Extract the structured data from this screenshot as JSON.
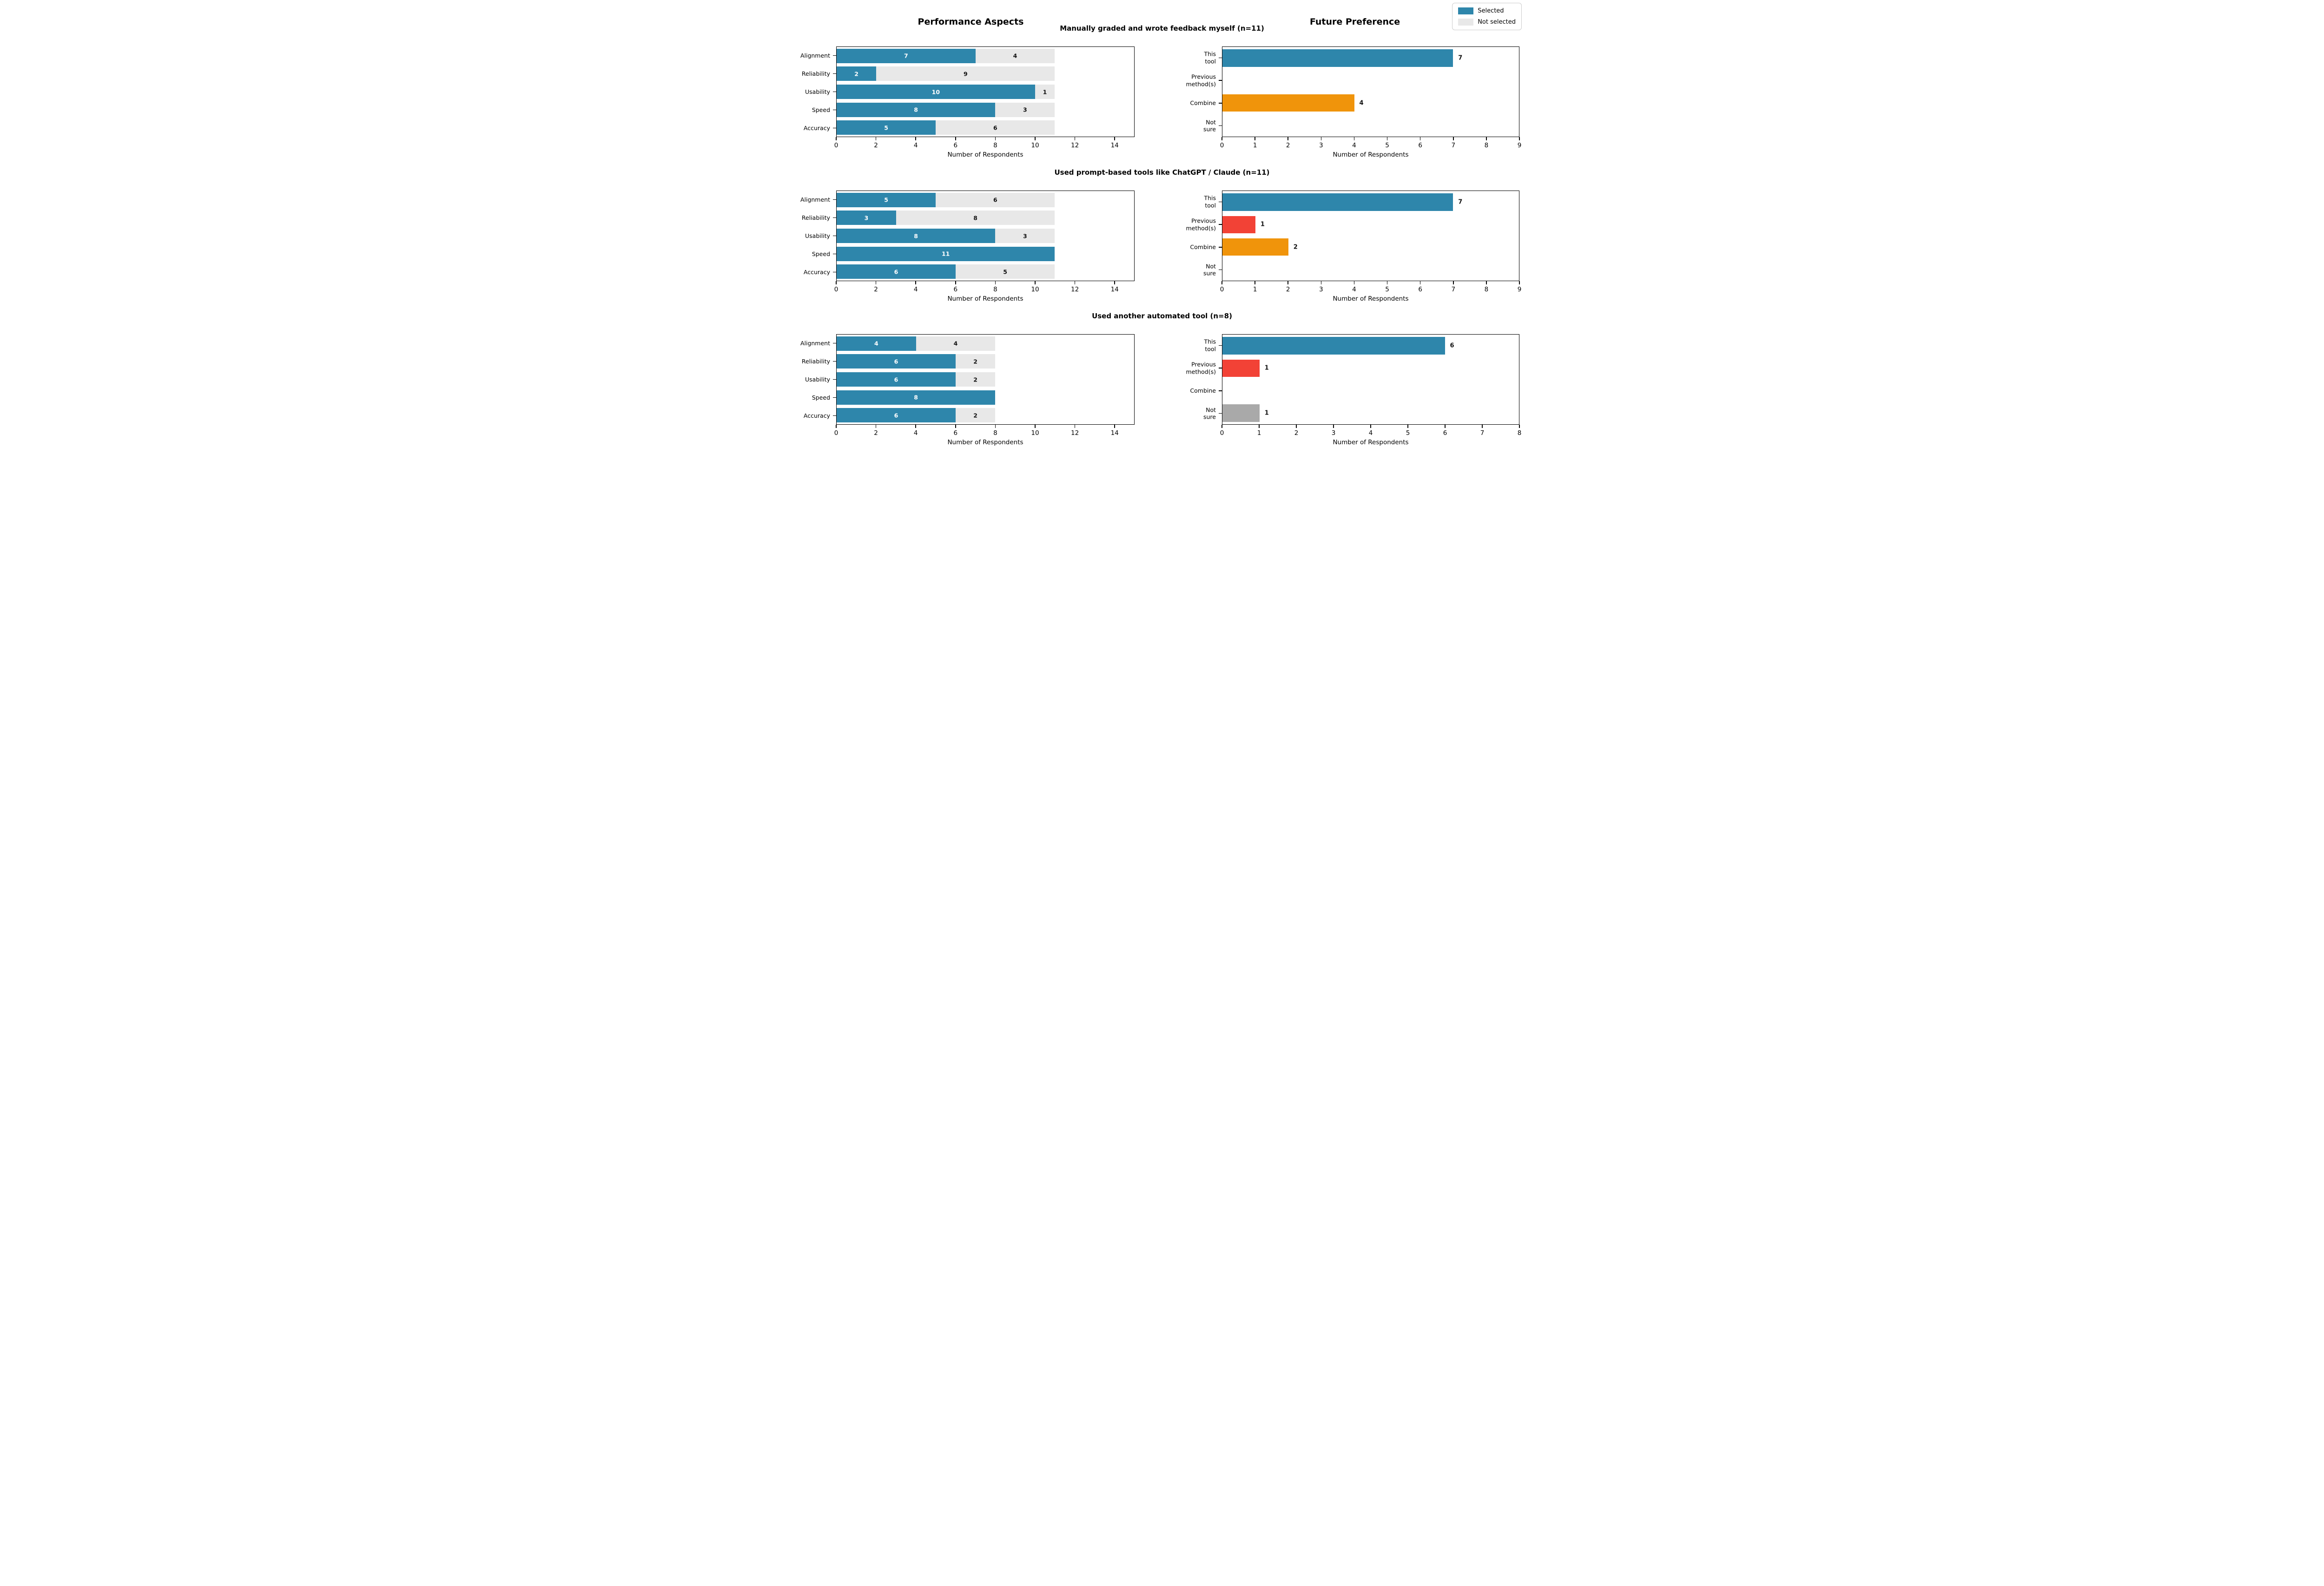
{
  "column_titles": {
    "left": "Performance Aspects",
    "right": "Future Preference"
  },
  "legend": {
    "items": [
      {
        "label": "Selected",
        "color": "#2E86AB"
      },
      {
        "label": "Not selected",
        "color": "#E8E8E8"
      }
    ]
  },
  "colors": {
    "selected": "#2E86AB",
    "not_selected": "#E8E8E8",
    "this_tool": "#2E86AB",
    "previous_methods": "#F24236",
    "combine": "#F0940B",
    "not_sure": "#A9A9A9"
  },
  "chart_data": [
    {
      "id": "row1-performance",
      "type": "bar",
      "orientation": "horizontal",
      "stacked": true,
      "row_title": "Manually graded and wrote feedback myself (n=11)",
      "categories": [
        "Alignment",
        "Reliability",
        "Usability",
        "Speed",
        "Accuracy"
      ],
      "series": [
        {
          "name": "Selected",
          "color": "#2E86AB",
          "values": [
            7,
            2,
            10,
            8,
            5
          ]
        },
        {
          "name": "Not selected",
          "color": "#E8E8E8",
          "values": [
            4,
            9,
            1,
            3,
            6
          ]
        }
      ],
      "xlabel": "Number of Respondents",
      "xlim": [
        0,
        15
      ],
      "xticks": [
        0,
        2,
        4,
        6,
        8,
        10,
        12,
        14
      ],
      "grid": false
    },
    {
      "id": "row1-preference",
      "type": "bar",
      "orientation": "horizontal",
      "stacked": false,
      "row_title": "Manually graded and wrote feedback myself (n=11)",
      "categories": [
        "This tool",
        "Previous\nmethod(s)",
        "Combine",
        "Not sure"
      ],
      "values": [
        7,
        0,
        4,
        0
      ],
      "bar_colors": [
        "#2E86AB",
        "#F24236",
        "#F0940B",
        "#A9A9A9"
      ],
      "xlabel": "Number of Respondents",
      "xlim": [
        0,
        9
      ],
      "xticks": [
        0,
        1,
        2,
        3,
        4,
        5,
        6,
        7,
        8,
        9
      ],
      "grid": false
    },
    {
      "id": "row2-performance",
      "type": "bar",
      "orientation": "horizontal",
      "stacked": true,
      "row_title": "Used prompt-based tools like ChatGPT / Claude (n=11)",
      "categories": [
        "Alignment",
        "Reliability",
        "Usability",
        "Speed",
        "Accuracy"
      ],
      "series": [
        {
          "name": "Selected",
          "color": "#2E86AB",
          "values": [
            5,
            3,
            8,
            11,
            6
          ]
        },
        {
          "name": "Not selected",
          "color": "#E8E8E8",
          "values": [
            6,
            8,
            3,
            0,
            5
          ]
        }
      ],
      "xlabel": "Number of Respondents",
      "xlim": [
        0,
        15
      ],
      "xticks": [
        0,
        2,
        4,
        6,
        8,
        10,
        12,
        14
      ],
      "grid": false
    },
    {
      "id": "row2-preference",
      "type": "bar",
      "orientation": "horizontal",
      "stacked": false,
      "row_title": "Used prompt-based tools like ChatGPT / Claude (n=11)",
      "categories": [
        "This tool",
        "Previous\nmethod(s)",
        "Combine",
        "Not sure"
      ],
      "values": [
        7,
        1,
        2,
        0
      ],
      "bar_colors": [
        "#2E86AB",
        "#F24236",
        "#F0940B",
        "#A9A9A9"
      ],
      "xlabel": "Number of Respondents",
      "xlim": [
        0,
        9
      ],
      "xticks": [
        0,
        1,
        2,
        3,
        4,
        5,
        6,
        7,
        8,
        9
      ],
      "grid": false
    },
    {
      "id": "row3-performance",
      "type": "bar",
      "orientation": "horizontal",
      "stacked": true,
      "row_title": "Used another automated tool (n=8)",
      "categories": [
        "Alignment",
        "Reliability",
        "Usability",
        "Speed",
        "Accuracy"
      ],
      "series": [
        {
          "name": "Selected",
          "color": "#2E86AB",
          "values": [
            4,
            6,
            6,
            8,
            6
          ]
        },
        {
          "name": "Not selected",
          "color": "#E8E8E8",
          "values": [
            4,
            2,
            2,
            0,
            2
          ]
        }
      ],
      "xlabel": "Number of Respondents",
      "xlim": [
        0,
        15
      ],
      "xticks": [
        0,
        2,
        4,
        6,
        8,
        10,
        12,
        14
      ],
      "grid": false
    },
    {
      "id": "row3-preference",
      "type": "bar",
      "orientation": "horizontal",
      "stacked": false,
      "row_title": "Used another automated tool (n=8)",
      "categories": [
        "This tool",
        "Previous\nmethod(s)",
        "Combine",
        "Not sure"
      ],
      "values": [
        6,
        1,
        0,
        1
      ],
      "bar_colors": [
        "#2E86AB",
        "#F24236",
        "#F0940B",
        "#A9A9A9"
      ],
      "xlabel": "Number of Respondents",
      "xlim": [
        0,
        8
      ],
      "xticks": [
        0,
        1,
        2,
        3,
        4,
        5,
        6,
        7,
        8
      ],
      "grid": false
    }
  ]
}
